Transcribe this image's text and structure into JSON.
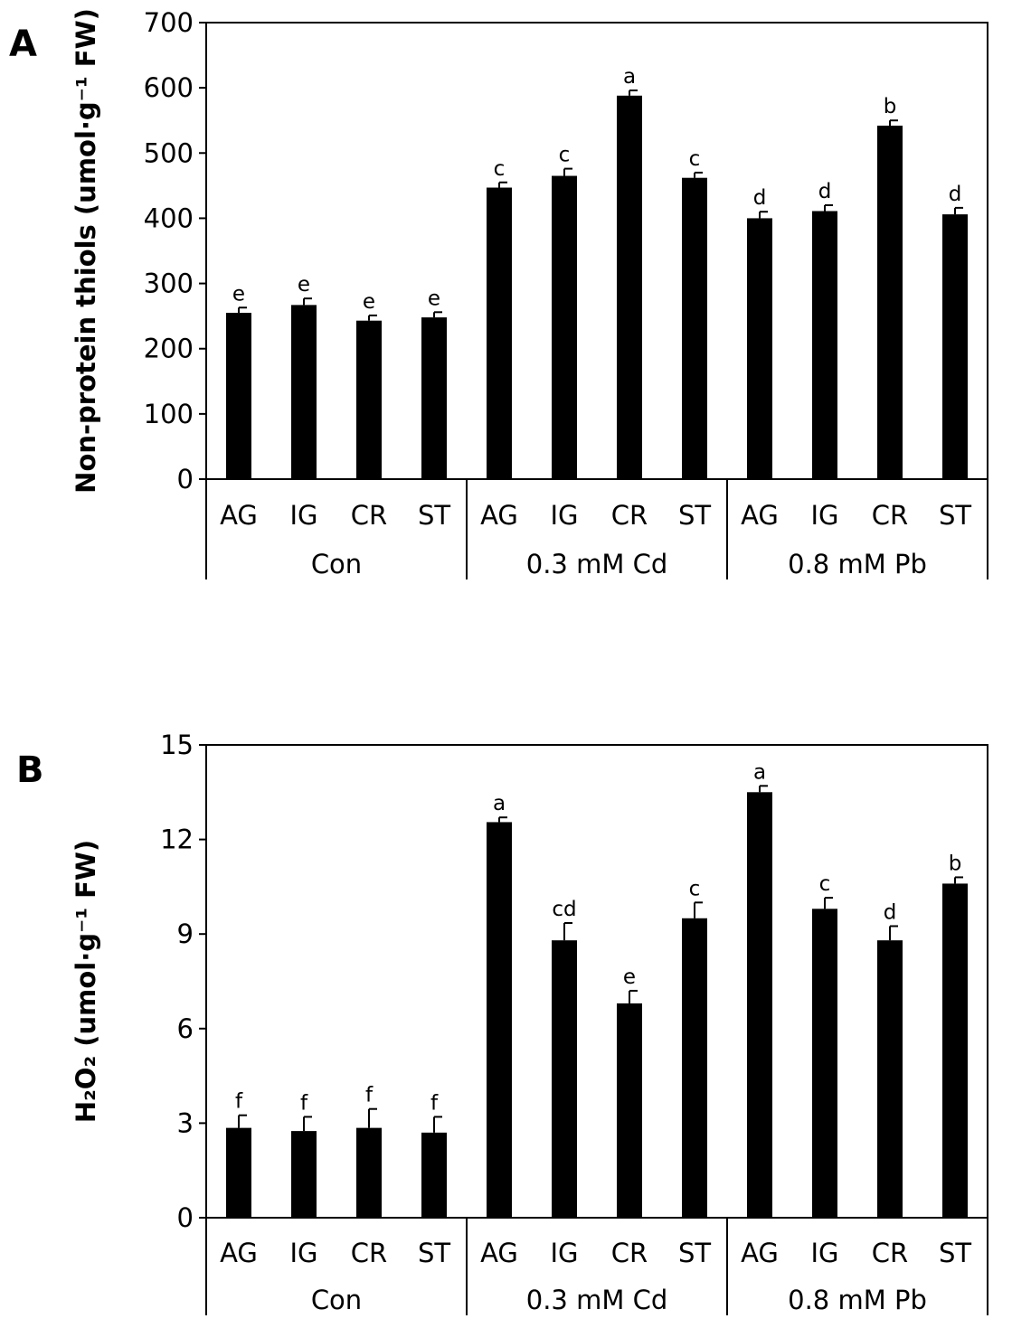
{
  "chart_data": [
    {
      "panel": "A",
      "type": "bar",
      "ylabel": "Non-protein thiols (umol·g⁻¹ FW)",
      "ylim": [
        0,
        700
      ],
      "yticks": [
        0,
        100,
        200,
        300,
        400,
        500,
        600,
        700
      ],
      "categories": [
        "AG",
        "IG",
        "CR",
        "ST",
        "AG",
        "IG",
        "CR",
        "ST",
        "AG",
        "IG",
        "CR",
        "ST"
      ],
      "groups": [
        {
          "label": "Con",
          "count": 4
        },
        {
          "label": "0.3 mM Cd",
          "count": 4
        },
        {
          "label": "0.8 mM Pb",
          "count": 4
        }
      ],
      "values": [
        255,
        267,
        243,
        248,
        447,
        465,
        588,
        462,
        400,
        411,
        542,
        406
      ],
      "errors": [
        8,
        10,
        8,
        8,
        8,
        11,
        8,
        8,
        10,
        9,
        8,
        10
      ],
      "labels": [
        "e",
        "e",
        "e",
        "e",
        "c",
        "c",
        "a",
        "c",
        "d",
        "d",
        "b",
        "d"
      ],
      "bar_color": "#000000"
    },
    {
      "panel": "B",
      "type": "bar",
      "ylabel": "H₂O₂ (umol·g⁻¹ FW)",
      "ylim": [
        0,
        15
      ],
      "yticks": [
        0,
        3,
        6,
        9,
        12,
        15
      ],
      "categories": [
        "AG",
        "IG",
        "CR",
        "ST",
        "AG",
        "IG",
        "CR",
        "ST",
        "AG",
        "IG",
        "CR",
        "ST"
      ],
      "groups": [
        {
          "label": "Con",
          "count": 4
        },
        {
          "label": "0.3 mM Cd",
          "count": 4
        },
        {
          "label": "0.8 mM Pb",
          "count": 4
        }
      ],
      "values": [
        2.85,
        2.75,
        2.85,
        2.7,
        12.55,
        8.8,
        6.8,
        9.5,
        13.5,
        9.8,
        8.8,
        10.6
      ],
      "errors": [
        0.4,
        0.45,
        0.6,
        0.5,
        0.15,
        0.55,
        0.4,
        0.5,
        0.2,
        0.35,
        0.45,
        0.2
      ],
      "labels": [
        "f",
        "f",
        "f",
        "f",
        "a",
        "cd",
        "e",
        "c",
        "a",
        "c",
        "d",
        "b"
      ],
      "bar_color": "#000000"
    }
  ]
}
